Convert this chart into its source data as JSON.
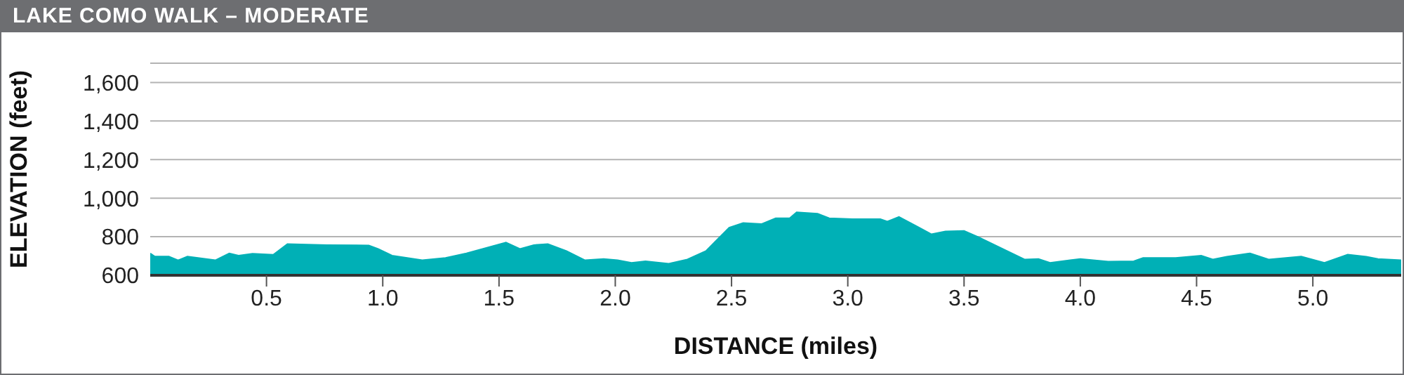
{
  "chart_data": {
    "type": "area",
    "title": "LAKE COMO WALK – MODERATE",
    "xlabel": "DISTANCE (miles)",
    "ylabel": "ELEVATION (feet)",
    "x": [
      0,
      0.02,
      0.08,
      0.12,
      0.16,
      0.28,
      0.34,
      0.38,
      0.44,
      0.53,
      0.59,
      0.76,
      0.94,
      0.98,
      1.04,
      1.17,
      1.27,
      1.36,
      1.53,
      1.59,
      1.65,
      1.71,
      1.79,
      1.87,
      1.95,
      2.01,
      2.07,
      2.13,
      2.23,
      2.31,
      2.39,
      2.49,
      2.55,
      2.63,
      2.69,
      2.75,
      2.78,
      2.87,
      2.92,
      3.02,
      3.14,
      3.17,
      3.22,
      3.3,
      3.36,
      3.42,
      3.5,
      3.56,
      3.76,
      3.82,
      3.87,
      4.0,
      4.12,
      4.23,
      4.27,
      4.41,
      4.52,
      4.57,
      4.63,
      4.73,
      4.81,
      4.95,
      5.05,
      5.15,
      5.23,
      5.28,
      5.38
    ],
    "series": [
      {
        "color": "#00b0b6",
        "values": [
          714,
          697,
          697,
          678,
          697,
          678,
          714,
          702,
          712,
          707,
          762,
          757,
          755,
          737,
          702,
          678,
          690,
          714,
          770,
          737,
          757,
          762,
          726,
          678,
          685,
          678,
          665,
          673,
          660,
          682,
          726,
          847,
          871,
          866,
          896,
          896,
          927,
          920,
          896,
          891,
          891,
          879,
          903,
          852,
          813,
          828,
          830,
          799,
          682,
          685,
          665,
          685,
          671,
          673,
          690,
          690,
          702,
          682,
          697,
          714,
          682,
          697,
          665,
          707,
          697,
          685,
          678
        ]
      }
    ],
    "xlim": [
      0,
      5.38
    ],
    "xticks": [
      {
        "value": 0.5,
        "label": "0.5"
      },
      {
        "value": 1,
        "label": "1.0"
      },
      {
        "value": 1.5,
        "label": "1.5"
      },
      {
        "value": 2,
        "label": "2.0"
      },
      {
        "value": 2.5,
        "label": "2.5"
      },
      {
        "value": 3,
        "label": "3.0"
      },
      {
        "value": 3.5,
        "label": "3.5"
      },
      {
        "value": 4,
        "label": "4.0"
      },
      {
        "value": 4.5,
        "label": "4.5"
      },
      {
        "value": 5,
        "label": "5.0"
      }
    ],
    "ylim": [
      600,
      1700
    ],
    "yticks": [
      {
        "value": 600,
        "label": "600"
      },
      {
        "value": 800,
        "label": "800"
      },
      {
        "value": 1000,
        "label": "1,000"
      },
      {
        "value": 1200,
        "label": "1,200"
      },
      {
        "value": 1400,
        "label": "1,400"
      },
      {
        "value": 1600,
        "label": "1,600"
      }
    ],
    "grid": "y"
  }
}
